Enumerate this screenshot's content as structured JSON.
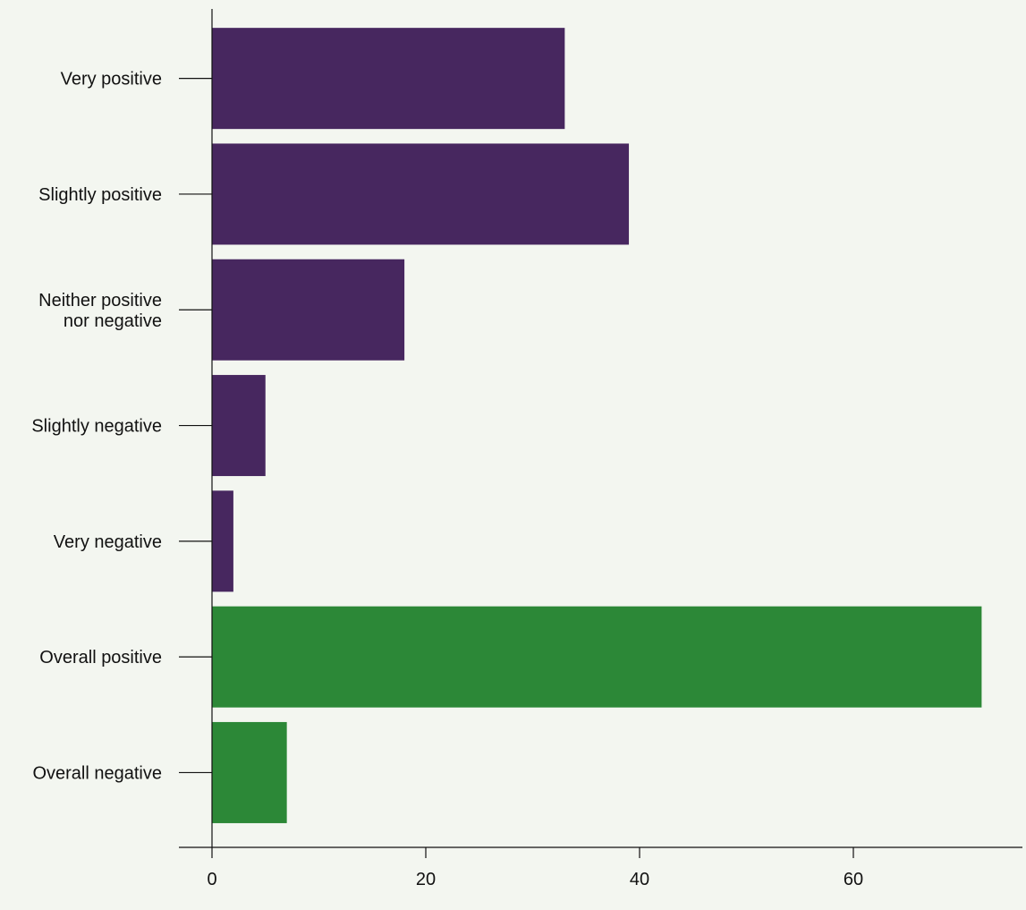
{
  "chart_data": {
    "type": "bar",
    "orientation": "horizontal",
    "categories": [
      "Very positive",
      "Slightly positive",
      "Neither positive nor negative",
      "Slightly negative",
      "Very negative",
      "Overall positive",
      "Overall negative"
    ],
    "category_label_lines": [
      [
        "Very positive"
      ],
      [
        "Slightly positive"
      ],
      [
        "Neither positive",
        "nor negative"
      ],
      [
        "Slightly negative"
      ],
      [
        "Very negative"
      ],
      [
        "Overall positive"
      ],
      [
        "Overall negative"
      ]
    ],
    "values": [
      33,
      39,
      18,
      5,
      2,
      72,
      7
    ],
    "bar_colors": [
      "#47275f",
      "#47275f",
      "#47275f",
      "#47275f",
      "#47275f",
      "#2c8837",
      "#2c8837"
    ],
    "xlim": [
      0,
      76
    ],
    "x_ticks": [
      0,
      20,
      40,
      60
    ],
    "x_tick_labels": [
      "0",
      "20",
      "40",
      "60"
    ],
    "grid": false,
    "legend": "none",
    "title": "",
    "xlabel": "",
    "ylabel": ""
  },
  "colors": {
    "background": "#f3f6f0",
    "axis": "#111111",
    "text": "#111111"
  }
}
